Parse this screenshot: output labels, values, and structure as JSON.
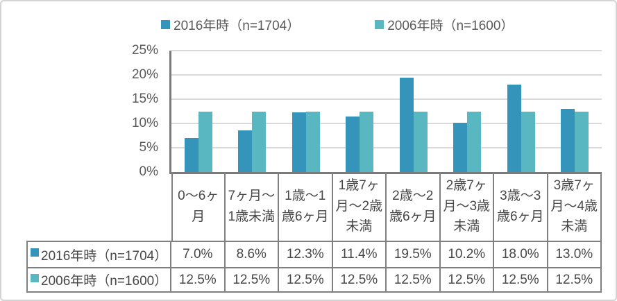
{
  "legend": {
    "items": [
      {
        "label": "2016年時（n=1704）",
        "color": "#3594b9"
      },
      {
        "label": "2006年時（n=1600）",
        "color": "#58b7c1"
      }
    ]
  },
  "chart_data": {
    "type": "bar",
    "title": "",
    "categories": [
      "0～6ヶ月",
      "7ヶ月～1歳未満",
      "1歳～1歳6ヶ月",
      "1歳7ヶ月～2歳未満",
      "2歳～2歳6ヶ月",
      "2歳7ヶ月～3歳未満",
      "3歳～3歳6ヶ月",
      "3歳7ヶ月～4歳未満"
    ],
    "series": [
      {
        "name": "2016年時（n=1704）",
        "color": "#3594b9",
        "values": [
          7.0,
          8.6,
          12.3,
          11.4,
          19.5,
          10.2,
          18.0,
          13.0
        ]
      },
      {
        "name": "2006年時（n=1600）",
        "color": "#58b7c1",
        "values": [
          12.5,
          12.5,
          12.5,
          12.5,
          12.5,
          12.5,
          12.5,
          12.5
        ]
      }
    ],
    "xlabel": "",
    "ylabel": "",
    "ylim": [
      0,
      25
    ],
    "ytick_step": 5,
    "ytick_labels": [
      "0%",
      "5%",
      "10%",
      "15%",
      "20%",
      "25%"
    ],
    "grid": true,
    "legend_position": "top",
    "table": {
      "rows": [
        {
          "label": "2016年時（n=1704）",
          "color": "#3594b9",
          "values": [
            "7.0%",
            "8.6%",
            "12.3%",
            "11.4%",
            "19.5%",
            "10.2%",
            "18.0%",
            "13.0%"
          ]
        },
        {
          "label": "2006年時（n=1600）",
          "color": "#58b7c1",
          "values": [
            "12.5%",
            "12.5%",
            "12.5%",
            "12.5%",
            "12.5%",
            "12.5%",
            "12.5%",
            "12.5%"
          ]
        }
      ]
    },
    "colors": {
      "axis": "#7a7a7a",
      "gridline": "#d9d9d9",
      "table_border": "#808080",
      "text": "#474747",
      "frame_border": "#d3d3d3"
    }
  }
}
